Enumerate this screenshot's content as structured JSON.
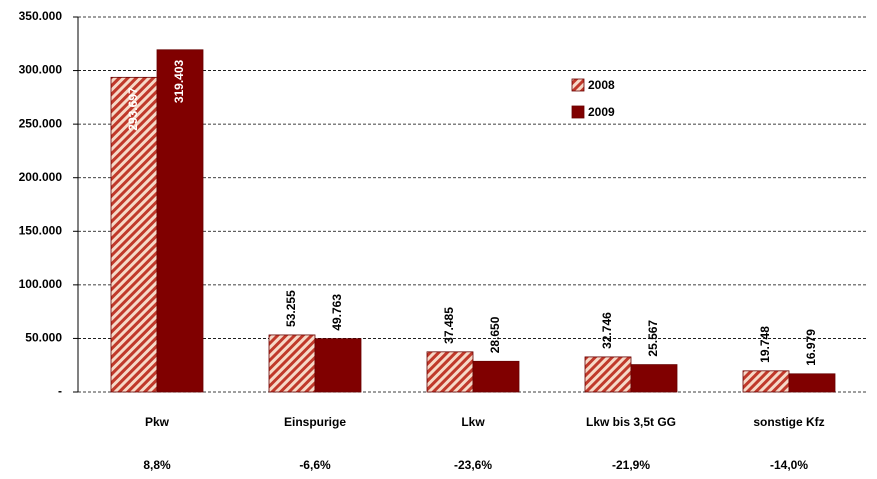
{
  "chart_data": {
    "type": "bar",
    "categories": [
      "Pkw",
      "Einspurige",
      "Lkw",
      "Lkw bis 3,5t GG",
      "sonstige Kfz"
    ],
    "changes": [
      "8,8%",
      "-6,6%",
      "-23,6%",
      "-21,9%",
      "-14,0%"
    ],
    "series": [
      {
        "name": "2008",
        "color": "#c0392b",
        "pattern": "hatched",
        "values": [
          293697,
          53255,
          37485,
          32746,
          19748
        ],
        "value_labels": [
          "293.697",
          "53.255",
          "37.485",
          "32.746",
          "19.748"
        ]
      },
      {
        "name": "2009",
        "color": "#800000",
        "values": [
          319403,
          49763,
          28650,
          25567,
          16979
        ],
        "value_labels": [
          "319.403",
          "49.763",
          "28.650",
          "25.567",
          "16.979"
        ]
      }
    ],
    "ylim": [
      0,
      350000
    ],
    "yticks": [
      {
        "value": 0,
        "label": "-"
      },
      {
        "value": 50000,
        "label": "50.000"
      },
      {
        "value": 100000,
        "label": "100.000"
      },
      {
        "value": 150000,
        "label": "150.000"
      },
      {
        "value": 200000,
        "label": "200.000"
      },
      {
        "value": 250000,
        "label": "250.000"
      },
      {
        "value": 300000,
        "label": "300.000"
      },
      {
        "value": 350000,
        "label": "350.000"
      }
    ],
    "grid": true,
    "legend": "upper-right"
  }
}
